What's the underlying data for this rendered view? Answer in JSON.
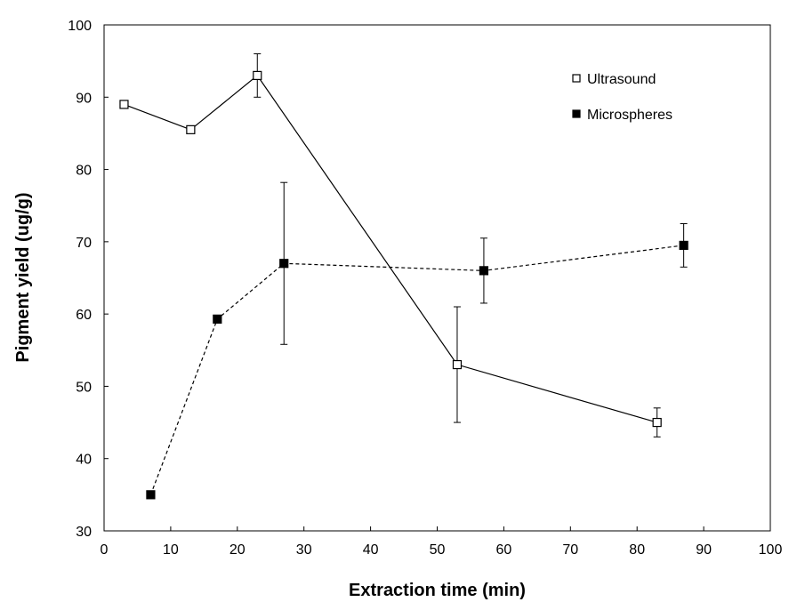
{
  "chart_data": {
    "type": "line",
    "xlabel": "Extraction time (min)",
    "ylabel": "Pigment yield (ug/g)",
    "xlim": [
      0,
      100
    ],
    "ylim": [
      30,
      100
    ],
    "xticks": [
      "0",
      "10",
      "20",
      "30",
      "40",
      "50",
      "60",
      "70",
      "80",
      "90",
      "100"
    ],
    "yticks": [
      "30",
      "40",
      "50",
      "60",
      "70",
      "80",
      "90",
      "100"
    ],
    "grid": false,
    "legend_position": "top-right",
    "series": [
      {
        "name": "Ultrasound",
        "marker": "open-square",
        "line_style": "solid",
        "color": "#000000",
        "x": [
          3,
          13,
          23,
          53,
          83
        ],
        "y": [
          89,
          85.5,
          93,
          53,
          45
        ],
        "error": [
          0,
          0,
          3,
          8,
          2
        ]
      },
      {
        "name": "Microspheres",
        "marker": "filled-square",
        "line_style": "dashed",
        "color": "#000000",
        "x": [
          7,
          17,
          27,
          57,
          87
        ],
        "y": [
          35,
          59.3,
          67,
          66,
          69.5
        ],
        "error": [
          0,
          0,
          11.2,
          4.5,
          3
        ]
      }
    ]
  }
}
